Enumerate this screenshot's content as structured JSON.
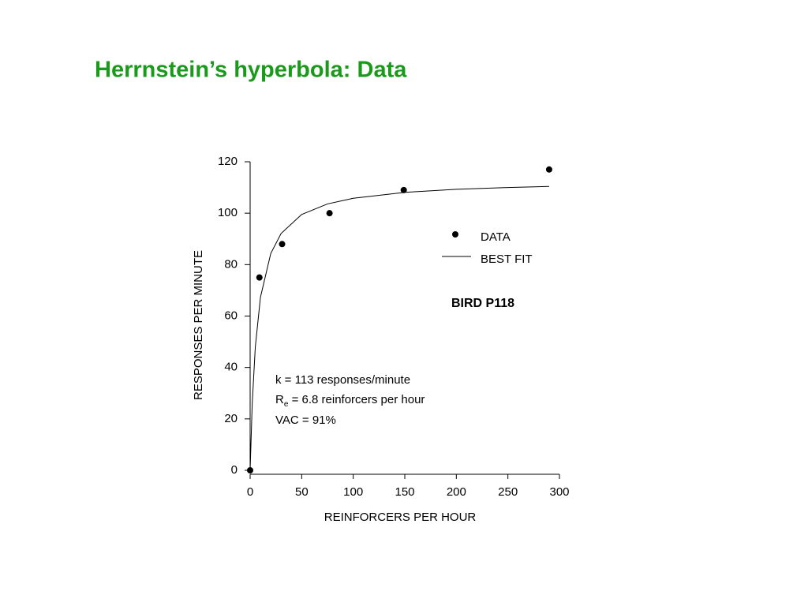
{
  "title": "Herrnstein’s hyperbola:  Data",
  "chart_data": {
    "type": "scatter",
    "x_label": "REINFORCERS PER HOUR",
    "y_label": "RESPONSES PER MINUTE",
    "xlim": [
      0,
      300
    ],
    "xticks": [
      0,
      50,
      100,
      150,
      200,
      250,
      300
    ],
    "ylim": [
      0,
      120
    ],
    "yticks": [
      0,
      20,
      40,
      60,
      80,
      100,
      120
    ],
    "series": [
      {
        "name": "DATA",
        "color": "#000000",
        "kind": "points",
        "x": [
          0,
          9,
          31,
          77,
          149,
          290
        ],
        "values": [
          0,
          75,
          88,
          100,
          109,
          117
        ]
      },
      {
        "name": "BEST FIT",
        "color": "#000000",
        "kind": "line",
        "x": [
          0,
          2,
          5,
          10,
          20,
          30,
          50,
          75,
          100,
          150,
          200,
          250,
          290
        ],
        "values": [
          0,
          25.7,
          47.9,
          67.3,
          84.3,
          92.1,
          99.5,
          103.6,
          105.8,
          108.1,
          109.3,
          110,
          110.4
        ]
      }
    ],
    "annotations": {
      "bird": "BIRD P118",
      "k": "k = 113 responses/minute",
      "re": {
        "main": "R",
        "sub": "e",
        "rest": " = 6.8 reinforcers per hour"
      },
      "vac": "VAC = 91%"
    }
  }
}
